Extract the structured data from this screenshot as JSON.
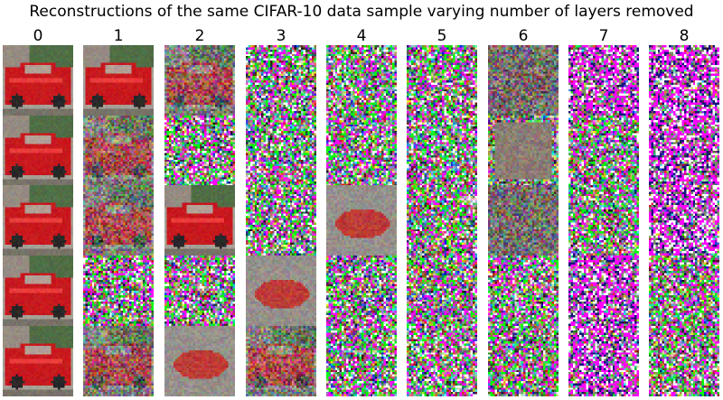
{
  "figure": {
    "title": "Reconstructions of the same CIFAR-10 data sample varying number of layers removed",
    "columns": [
      {
        "label": "0",
        "cells": [
          "car",
          "car",
          "car",
          "car",
          "car"
        ]
      },
      {
        "label": "1",
        "cells": [
          "car",
          "car_noisy",
          "car_noisy",
          "noise",
          "car_noisy"
        ]
      },
      {
        "label": "2",
        "cells": [
          "car_noisy",
          "noise",
          "car",
          "noise",
          "blur_car"
        ]
      },
      {
        "label": "3",
        "cells": [
          "noise",
          "noise",
          "noise",
          "blur_car",
          "car_noisy"
        ]
      },
      {
        "label": "4",
        "cells": [
          "noise",
          "noise",
          "blur_car",
          "noise",
          "noise"
        ]
      },
      {
        "label": "5",
        "cells": [
          "noise",
          "noise",
          "noise",
          "noise",
          "noise"
        ]
      },
      {
        "label": "6",
        "cells": [
          "muted_noise",
          "gray_block",
          "muted_noise",
          "noise",
          "noise"
        ]
      },
      {
        "label": "7",
        "cells": [
          "magenta_blobs",
          "noise",
          "noise",
          "magenta_blobs",
          "magenta_blobs"
        ]
      },
      {
        "label": "8",
        "cells": [
          "magenta_blobs",
          "magenta_blobs",
          "magenta_blobs",
          "noise",
          "noise"
        ]
      }
    ]
  }
}
